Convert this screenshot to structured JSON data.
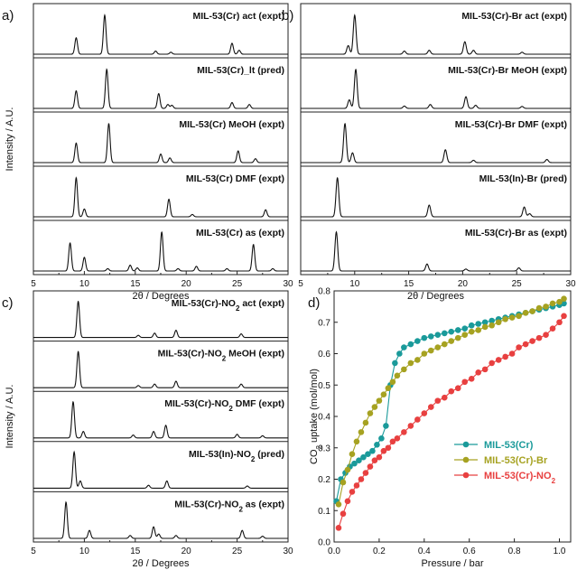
{
  "chart_data": [
    {
      "id": "a",
      "type": "line",
      "panel_label": "a)",
      "xlabel": "2θ / Degrees",
      "ylabel": "Intensity / A.U.",
      "xlim": [
        5,
        30
      ],
      "xticks": [
        "5",
        "10",
        "15",
        "20",
        "25",
        "30"
      ],
      "series": [
        {
          "name": "MIL-53(Cr) act (expt)",
          "label_pre": "MIL-53(Cr) act (expt)",
          "label_sub": "",
          "label_post": "",
          "peaks": [
            [
              9.2,
              0.42
            ],
            [
              12.0,
              1.0
            ],
            [
              17.0,
              0.08
            ],
            [
              18.5,
              0.05
            ],
            [
              24.5,
              0.28
            ],
            [
              25.2,
              0.1
            ]
          ]
        },
        {
          "name": "MIL-53(Cr)_lt (pred)",
          "label_pre": "MIL-53(Cr)_lt (pred)",
          "label_sub": "",
          "label_post": "",
          "peaks": [
            [
              9.2,
              0.45
            ],
            [
              12.2,
              1.0
            ],
            [
              17.3,
              0.38
            ],
            [
              18.2,
              0.1
            ],
            [
              18.6,
              0.08
            ],
            [
              24.5,
              0.15
            ],
            [
              26.2,
              0.1
            ]
          ]
        },
        {
          "name": "MIL-53(Cr) MeOH (expt)",
          "label_pre": "MIL-53(Cr) MeOH (expt)",
          "label_sub": "",
          "label_post": "",
          "peaks": [
            [
              9.2,
              0.5
            ],
            [
              12.4,
              1.0
            ],
            [
              17.5,
              0.22
            ],
            [
              18.4,
              0.12
            ],
            [
              25.1,
              0.3
            ],
            [
              26.8,
              0.1
            ]
          ]
        },
        {
          "name": "MIL-53(Cr) DMF (expt)",
          "label_pre": "MIL-53(Cr) DMF (expt)",
          "label_sub": "",
          "label_post": "",
          "peaks": [
            [
              9.2,
              1.0
            ],
            [
              10.0,
              0.2
            ],
            [
              18.3,
              0.45
            ],
            [
              20.6,
              0.06
            ],
            [
              27.8,
              0.18
            ]
          ]
        },
        {
          "name": "MIL-53(Cr) as (expt)",
          "label_pre": "MIL-53(Cr) as (expt)",
          "label_sub": "",
          "label_post": "",
          "peaks": [
            [
              8.6,
              0.72
            ],
            [
              10.0,
              0.35
            ],
            [
              12.3,
              0.06
            ],
            [
              14.5,
              0.15
            ],
            [
              15.2,
              0.08
            ],
            [
              17.6,
              1.0
            ],
            [
              19.2,
              0.06
            ],
            [
              21.0,
              0.12
            ],
            [
              24.0,
              0.06
            ],
            [
              26.6,
              0.68
            ],
            [
              28.5,
              0.06
            ]
          ]
        }
      ]
    },
    {
      "id": "b",
      "type": "line",
      "panel_label": "b)",
      "xlabel": "2θ / Degrees",
      "ylabel": "",
      "xlim": [
        5,
        30
      ],
      "xticks": [
        "5",
        "10",
        "15",
        "20",
        "25",
        "30"
      ],
      "series": [
        {
          "name": "MIL-53(Cr)-Br act (expt)",
          "label_pre": "MIL-53(Cr)-Br act (expt)",
          "label_sub": "",
          "label_post": "",
          "peaks": [
            [
              9.4,
              0.22
            ],
            [
              10.0,
              1.0
            ],
            [
              14.6,
              0.08
            ],
            [
              16.9,
              0.1
            ],
            [
              20.2,
              0.32
            ],
            [
              21.0,
              0.1
            ],
            [
              25.5,
              0.05
            ]
          ]
        },
        {
          "name": "MIL-53(Cr)-Br MeOH (expt)",
          "label_pre": "MIL-53(Cr)-Br MeOH (expt)",
          "label_sub": "",
          "label_post": "",
          "peaks": [
            [
              9.5,
              0.22
            ],
            [
              10.1,
              1.0
            ],
            [
              14.6,
              0.06
            ],
            [
              17.0,
              0.1
            ],
            [
              20.3,
              0.3
            ],
            [
              21.2,
              0.08
            ],
            [
              25.5,
              0.05
            ]
          ]
        },
        {
          "name": "MIL-53(Cr)-Br DMF (expt)",
          "label_pre": "MIL-53(Cr)-Br DMF (expt)",
          "label_sub": "",
          "label_post": "",
          "peaks": [
            [
              9.1,
              1.0
            ],
            [
              9.8,
              0.25
            ],
            [
              18.4,
              0.33
            ],
            [
              21.0,
              0.06
            ],
            [
              27.8,
              0.08
            ]
          ]
        },
        {
          "name": "MIL-53(In)-Br (pred)",
          "label_pre": "MIL-53(In)-Br (pred)",
          "label_sub": "",
          "label_post": "",
          "peaks": [
            [
              8.4,
              1.0
            ],
            [
              16.9,
              0.3
            ],
            [
              25.7,
              0.25
            ],
            [
              26.2,
              0.08
            ]
          ]
        },
        {
          "name": "MIL-53(Cr)-Br as (expt)",
          "label_pre": "MIL-53(Cr)-Br as (expt)",
          "label_sub": "",
          "label_post": "",
          "peaks": [
            [
              8.3,
              1.0
            ],
            [
              16.7,
              0.18
            ],
            [
              20.3,
              0.05
            ],
            [
              25.2,
              0.08
            ]
          ]
        }
      ]
    },
    {
      "id": "c",
      "type": "line",
      "panel_label": "c)",
      "xlabel": "2θ / Degrees",
      "ylabel": "Intensity / A.U.",
      "xlim": [
        5,
        30
      ],
      "xticks": [
        "5",
        "10",
        "15",
        "20",
        "25",
        "30"
      ],
      "series": [
        {
          "name": "MIL-53(Cr)-NO2 act (expt)",
          "label_pre": "MIL-53(Cr)-NO",
          "label_sub": "2",
          "label_post": " act (expt)",
          "peaks": [
            [
              9.4,
              1.0
            ],
            [
              15.3,
              0.06
            ],
            [
              16.9,
              0.12
            ],
            [
              19.0,
              0.2
            ],
            [
              25.4,
              0.1
            ]
          ]
        },
        {
          "name": "MIL-53(Cr)-NO2 MeOH (expt)",
          "label_pre": "MIL-53(Cr)-NO",
          "label_sub": "2",
          "label_post": " MeOH (expt)",
          "peaks": [
            [
              9.4,
              1.0
            ],
            [
              15.3,
              0.06
            ],
            [
              16.9,
              0.1
            ],
            [
              19.0,
              0.18
            ],
            [
              25.4,
              0.1
            ]
          ]
        },
        {
          "name": "MIL-53(Cr)-NO2 DMF (expt)",
          "label_pre": "MIL-53(Cr)-NO",
          "label_sub": "2",
          "label_post": " DMF (expt)",
          "peaks": [
            [
              8.9,
              1.0
            ],
            [
              9.9,
              0.18
            ],
            [
              14.8,
              0.08
            ],
            [
              16.8,
              0.18
            ],
            [
              18.0,
              0.35
            ],
            [
              25.0,
              0.1
            ],
            [
              27.5,
              0.06
            ]
          ]
        },
        {
          "name": "MIL-53(In)-NO2 (pred)",
          "label_pre": "MIL-53(In)-NO",
          "label_sub": "2",
          "label_post": " (pred)",
          "peaks": [
            [
              9.0,
              1.0
            ],
            [
              9.6,
              0.2
            ],
            [
              16.3,
              0.08
            ],
            [
              18.1,
              0.2
            ],
            [
              26.0,
              0.06
            ]
          ]
        },
        {
          "name": "MIL-53(Cr)-NO2 as (expt)",
          "label_pre": "MIL-53(Cr)-NO",
          "label_sub": "2",
          "label_post": " as (expt)",
          "peaks": [
            [
              8.2,
              1.0
            ],
            [
              10.5,
              0.22
            ],
            [
              14.5,
              0.08
            ],
            [
              16.8,
              0.32
            ],
            [
              17.3,
              0.12
            ],
            [
              19.0,
              0.08
            ],
            [
              25.5,
              0.22
            ],
            [
              27.5,
              0.06
            ]
          ]
        }
      ]
    },
    {
      "id": "d",
      "type": "scatter",
      "panel_label": "d)",
      "xlabel": "Pressure / bar",
      "ylabel_pre": "CO",
      "ylabel_sub": "2",
      "ylabel_post": " uptake (mol/mol)",
      "xlim": [
        0,
        1.05
      ],
      "ylim": [
        0,
        0.8
      ],
      "xticks": [
        0,
        0.2,
        0.4,
        0.6,
        0.8,
        1.0
      ],
      "xtick_labels": [
        "0.0",
        "0.2",
        "0.4",
        "0.6",
        "0.8",
        "1.0"
      ],
      "yticks": [
        0,
        0.1,
        0.2,
        0.3,
        0.4,
        0.5,
        0.6,
        0.7,
        0.8
      ],
      "ytick_labels": [
        "0.0",
        "0.1",
        "0.2",
        "0.3",
        "0.4",
        "0.5",
        "0.6",
        "0.7",
        "0.8"
      ],
      "legend_position": "lower-right",
      "series": [
        {
          "name": "MIL-53(Cr)",
          "label_pre": "MIL-53(Cr)",
          "label_sub": "",
          "label_post": "",
          "color": "#1a9a9a",
          "x": [
            0.01,
            0.03,
            0.05,
            0.07,
            0.09,
            0.11,
            0.13,
            0.15,
            0.17,
            0.19,
            0.21,
            0.23,
            0.25,
            0.27,
            0.29,
            0.31,
            0.34,
            0.37,
            0.4,
            0.43,
            0.46,
            0.49,
            0.52,
            0.55,
            0.58,
            0.61,
            0.64,
            0.67,
            0.7,
            0.73,
            0.76,
            0.79,
            0.82,
            0.85,
            0.88,
            0.91,
            0.94,
            0.97,
            1.0,
            1.02
          ],
          "y": [
            0.13,
            0.2,
            0.22,
            0.24,
            0.25,
            0.26,
            0.27,
            0.28,
            0.29,
            0.31,
            0.33,
            0.37,
            0.5,
            0.57,
            0.6,
            0.62,
            0.63,
            0.64,
            0.65,
            0.655,
            0.66,
            0.665,
            0.67,
            0.675,
            0.68,
            0.69,
            0.695,
            0.7,
            0.705,
            0.71,
            0.715,
            0.72,
            0.725,
            0.73,
            0.735,
            0.74,
            0.745,
            0.75,
            0.755,
            0.76
          ]
        },
        {
          "name": "MIL-53(Cr)-Br",
          "label_pre": "MIL-53(Cr)-Br",
          "label_sub": "",
          "label_post": "",
          "color": "#a6a221",
          "x": [
            0.02,
            0.04,
            0.06,
            0.08,
            0.1,
            0.12,
            0.14,
            0.16,
            0.18,
            0.2,
            0.22,
            0.24,
            0.26,
            0.28,
            0.31,
            0.34,
            0.37,
            0.4,
            0.43,
            0.46,
            0.49,
            0.52,
            0.55,
            0.58,
            0.61,
            0.64,
            0.67,
            0.7,
            0.73,
            0.76,
            0.79,
            0.82,
            0.85,
            0.88,
            0.91,
            0.94,
            0.97,
            1.0,
            1.02
          ],
          "y": [
            0.12,
            0.19,
            0.23,
            0.28,
            0.32,
            0.35,
            0.38,
            0.41,
            0.43,
            0.45,
            0.47,
            0.49,
            0.51,
            0.53,
            0.55,
            0.57,
            0.58,
            0.6,
            0.61,
            0.62,
            0.63,
            0.64,
            0.65,
            0.66,
            0.67,
            0.675,
            0.685,
            0.69,
            0.7,
            0.71,
            0.715,
            0.72,
            0.73,
            0.735,
            0.745,
            0.75,
            0.76,
            0.765,
            0.775
          ]
        },
        {
          "name": "MIL-53(Cr)-NO2",
          "label_pre": "MIL-53(Cr)-NO",
          "label_sub": "2",
          "label_post": "",
          "color": "#e84040",
          "x": [
            0.02,
            0.04,
            0.06,
            0.08,
            0.1,
            0.12,
            0.14,
            0.16,
            0.18,
            0.2,
            0.22,
            0.24,
            0.26,
            0.28,
            0.31,
            0.34,
            0.37,
            0.4,
            0.43,
            0.46,
            0.49,
            0.52,
            0.55,
            0.58,
            0.61,
            0.64,
            0.67,
            0.7,
            0.73,
            0.76,
            0.79,
            0.82,
            0.85,
            0.88,
            0.91,
            0.94,
            0.97,
            1.0,
            1.02
          ],
          "y": [
            0.045,
            0.09,
            0.13,
            0.16,
            0.18,
            0.2,
            0.22,
            0.24,
            0.26,
            0.27,
            0.29,
            0.3,
            0.32,
            0.33,
            0.35,
            0.37,
            0.39,
            0.41,
            0.43,
            0.45,
            0.46,
            0.48,
            0.49,
            0.51,
            0.52,
            0.54,
            0.55,
            0.57,
            0.58,
            0.59,
            0.6,
            0.62,
            0.63,
            0.64,
            0.65,
            0.66,
            0.68,
            0.7,
            0.72
          ]
        }
      ]
    }
  ]
}
